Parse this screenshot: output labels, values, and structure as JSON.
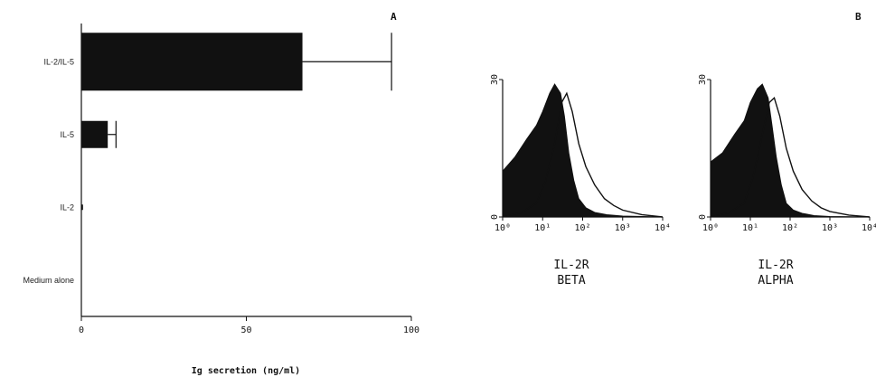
{
  "colors": {
    "ink": "#111111",
    "background": "#ffffff"
  },
  "panels": {
    "a": "A",
    "b": "B"
  },
  "chart_data": [
    {
      "panel": "A",
      "type": "bar",
      "orientation": "horizontal",
      "categories": [
        "IL-2/IL-5",
        "IL-5",
        "IL-2",
        "Medium alone"
      ],
      "values": [
        67,
        8,
        0.5,
        0
      ],
      "error": [
        27,
        2.5,
        0,
        0
      ],
      "xlabel": "Ig secretion (ng/ml)",
      "xlim": [
        0,
        100
      ],
      "xticks": [
        "0",
        "50",
        "100"
      ],
      "grid": false
    },
    {
      "panel": "B",
      "type": "area",
      "title_lines": [
        "IL-2R",
        "BETA"
      ],
      "xscale": "log",
      "xlim": [
        1,
        10000
      ],
      "xticks": [
        "10⁰",
        "10¹",
        "10²",
        "10³",
        "10⁴"
      ],
      "ylim": [
        0,
        30
      ],
      "yticks": [
        "0",
        "30"
      ],
      "series": [
        {
          "fill": "solid",
          "x": [
            1,
            2,
            4,
            7,
            10,
            15,
            20,
            28,
            35,
            45,
            60,
            80,
            120,
            200,
            400,
            1000,
            10000
          ],
          "y": [
            10,
            13,
            17,
            20,
            23,
            27,
            29,
            27,
            22,
            14,
            8,
            4,
            2,
            1,
            0.5,
            0.2,
            0
          ]
        },
        {
          "fill": "outline",
          "x": [
            1,
            3,
            7,
            12,
            20,
            30,
            40,
            55,
            80,
            120,
            200,
            350,
            600,
            1000,
            3000,
            10000
          ],
          "y": [
            0,
            1,
            3,
            8,
            16,
            25,
            27,
            23,
            16,
            11,
            7,
            4,
            2.5,
            1.5,
            0.5,
            0
          ]
        }
      ]
    },
    {
      "panel": "B",
      "type": "area",
      "title_lines": [
        "IL-2R",
        "ALPHA"
      ],
      "xscale": "log",
      "xlim": [
        1,
        10000
      ],
      "xticks": [
        "10⁰",
        "10¹",
        "10²",
        "10³",
        "10⁴"
      ],
      "ylim": [
        0,
        30
      ],
      "yticks": [
        "0",
        "30"
      ],
      "series": [
        {
          "fill": "solid",
          "x": [
            1,
            2,
            4,
            7,
            10,
            15,
            20,
            28,
            35,
            45,
            60,
            80,
            120,
            200,
            400,
            1000,
            10000
          ],
          "y": [
            12,
            14,
            18,
            21,
            25,
            28,
            29,
            26,
            20,
            13,
            7,
            3,
            1.5,
            0.8,
            0.3,
            0.1,
            0
          ]
        },
        {
          "fill": "outline",
          "x": [
            1,
            3,
            7,
            12,
            20,
            30,
            40,
            55,
            80,
            120,
            200,
            350,
            600,
            1000,
            3000,
            10000
          ],
          "y": [
            0,
            1,
            3,
            9,
            18,
            25,
            26,
            22,
            15,
            10,
            6,
            3.5,
            2,
            1.2,
            0.4,
            0
          ]
        }
      ]
    }
  ]
}
